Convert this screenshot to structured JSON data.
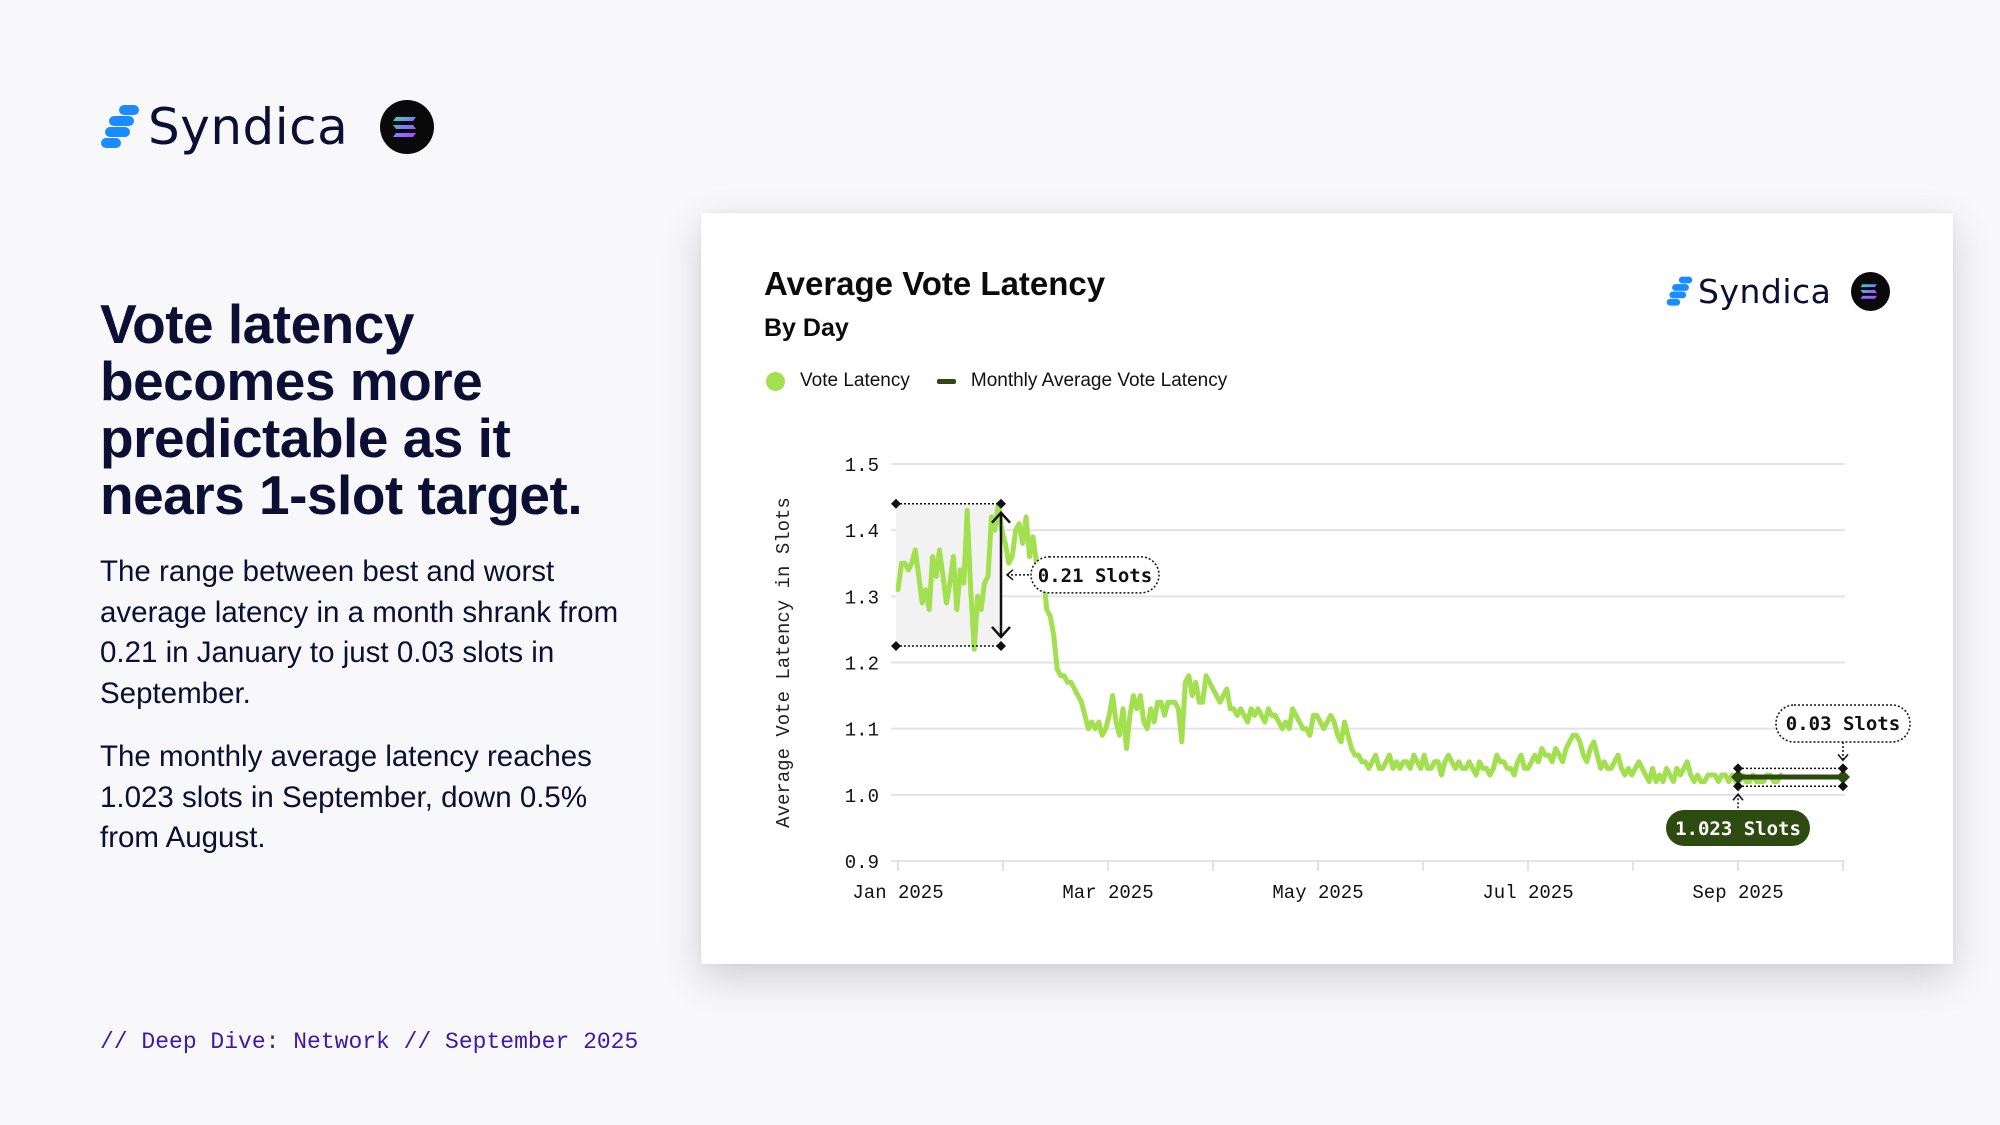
{
  "brand": {
    "name": "Syndica",
    "partner_icon": "solana-logo-icon",
    "mark_icon": "syndica-logo-icon",
    "brand_blue": "#1a8cff"
  },
  "headline": "Vote latency becomes more predictable as it nears 1-slot target.",
  "paragraphs": [
    "The range between best and worst average latency in a month shrank from 0.21 in January to just 0.03 slots in September.",
    "The monthly average latency reaches 1.023 slots in September, down 0.5% from August."
  ],
  "footer": "// Deep Dive: Network // September 2025",
  "card": {
    "title": "Average Vote Latency",
    "subtitle": "By Day",
    "brand_name": "Syndica"
  },
  "chart_data": {
    "type": "line",
    "title": "Average Vote Latency",
    "subtitle": "By Day",
    "xlabel": "",
    "ylabel": "Average Vote Latency in Slots",
    "ylim": [
      0.9,
      1.5
    ],
    "yticks": [
      "0.9",
      "1.0",
      "1.1",
      "1.2",
      "1.3",
      "1.4",
      "1.5"
    ],
    "ytick_values": [
      0.9,
      1.0,
      1.1,
      1.2,
      1.3,
      1.4,
      1.5
    ],
    "xlim": [
      "2025-01-01",
      "2025-09-30"
    ],
    "xtick_labels": [
      "Jan 2025",
      "Mar 2025",
      "May 2025",
      "Jul 2025",
      "Sep 2025"
    ],
    "xtick_month_index": [
      0,
      2,
      4,
      6,
      8
    ],
    "grid": true,
    "legend_position": "top-left",
    "colors": {
      "vote_latency": "#a3e04f",
      "monthly_average": "#2d4a10",
      "annotation": "#111111"
    },
    "series": [
      {
        "name": "Vote Latency",
        "granularity": "daily",
        "start": "2025-01-01",
        "values": [
          1.31,
          1.35,
          1.35,
          1.34,
          1.35,
          1.37,
          1.33,
          1.29,
          1.31,
          1.28,
          1.36,
          1.33,
          1.37,
          1.33,
          1.29,
          1.32,
          1.36,
          1.28,
          1.34,
          1.32,
          1.43,
          1.31,
          1.22,
          1.3,
          1.28,
          1.32,
          1.33,
          1.42,
          1.4,
          1.44,
          1.4,
          1.38,
          1.35,
          1.36,
          1.4,
          1.41,
          1.38,
          1.42,
          1.36,
          1.39,
          1.35,
          1.34,
          1.33,
          1.28,
          1.27,
          1.24,
          1.19,
          1.18,
          1.18,
          1.17,
          1.17,
          1.16,
          1.15,
          1.14,
          1.12,
          1.1,
          1.11,
          1.1,
          1.11,
          1.09,
          1.1,
          1.12,
          1.15,
          1.11,
          1.09,
          1.13,
          1.07,
          1.12,
          1.15,
          1.13,
          1.15,
          1.11,
          1.1,
          1.13,
          1.11,
          1.14,
          1.14,
          1.12,
          1.14,
          1.14,
          1.14,
          1.13,
          1.08,
          1.17,
          1.18,
          1.15,
          1.17,
          1.14,
          1.14,
          1.18,
          1.17,
          1.16,
          1.15,
          1.14,
          1.15,
          1.16,
          1.13,
          1.13,
          1.12,
          1.13,
          1.12,
          1.11,
          1.13,
          1.12,
          1.13,
          1.12,
          1.11,
          1.13,
          1.12,
          1.12,
          1.11,
          1.1,
          1.11,
          1.1,
          1.13,
          1.12,
          1.11,
          1.1,
          1.1,
          1.09,
          1.12,
          1.12,
          1.11,
          1.1,
          1.11,
          1.12,
          1.11,
          1.09,
          1.08,
          1.11,
          1.09,
          1.07,
          1.06,
          1.06,
          1.05,
          1.05,
          1.04,
          1.05,
          1.06,
          1.04,
          1.04,
          1.05,
          1.06,
          1.04,
          1.05,
          1.04,
          1.05,
          1.05,
          1.04,
          1.06,
          1.05,
          1.04,
          1.06,
          1.04,
          1.04,
          1.05,
          1.05,
          1.03,
          1.05,
          1.06,
          1.05,
          1.04,
          1.05,
          1.04,
          1.04,
          1.05,
          1.04,
          1.03,
          1.05,
          1.04,
          1.04,
          1.03,
          1.04,
          1.06,
          1.05,
          1.05,
          1.04,
          1.04,
          1.03,
          1.05,
          1.06,
          1.04,
          1.04,
          1.05,
          1.06,
          1.05,
          1.07,
          1.06,
          1.06,
          1.05,
          1.07,
          1.06,
          1.05,
          1.07,
          1.08,
          1.09,
          1.09,
          1.08,
          1.06,
          1.05,
          1.07,
          1.08,
          1.06,
          1.04,
          1.05,
          1.04,
          1.04,
          1.05,
          1.06,
          1.04,
          1.03,
          1.04,
          1.03,
          1.04,
          1.05,
          1.04,
          1.03,
          1.02,
          1.04,
          1.02,
          1.03,
          1.02,
          1.04,
          1.03,
          1.02,
          1.04,
          1.03,
          1.04,
          1.05,
          1.03,
          1.02,
          1.03,
          1.02,
          1.02,
          1.03,
          1.03,
          1.03,
          1.02,
          1.03,
          1.03,
          1.02,
          1.03,
          1.02,
          1.02,
          1.03,
          1.02,
          1.02,
          1.03,
          1.02,
          1.02,
          1.02,
          1.03,
          1.03,
          1.02,
          1.02,
          1.03
        ]
      },
      {
        "name": "Monthly Average Vote Latency",
        "granularity": "monthly",
        "shown_for": [
          "Sep 2025"
        ],
        "values": [
          1.023
        ]
      }
    ],
    "annotations": [
      {
        "label": "0.21 Slots",
        "month": "Jan 2025",
        "range": [
          1.225,
          1.44
        ],
        "style": "dotted-outline"
      },
      {
        "label": "0.03 Slots",
        "month": "Sep 2025",
        "range": [
          1.013,
          1.04
        ],
        "style": "dotted-outline"
      },
      {
        "label": "1.023 Slots",
        "month": "Sep 2025",
        "value": 1.023,
        "style": "filled"
      }
    ]
  }
}
